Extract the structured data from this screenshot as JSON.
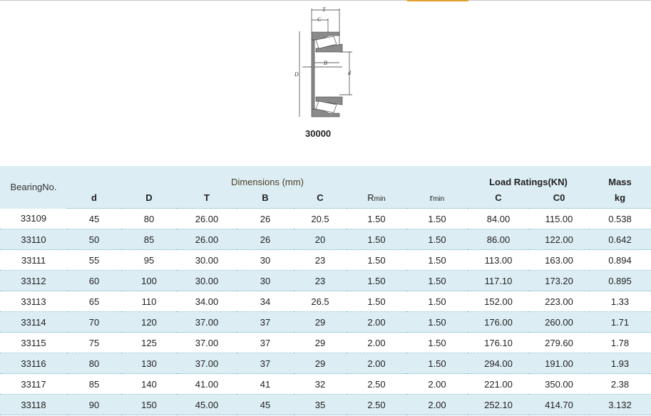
{
  "figure": {
    "caption": "30000",
    "labels": {
      "T": "T",
      "C": "C",
      "B": "B",
      "D": "D",
      "d": "d"
    }
  },
  "table": {
    "header": {
      "bearing_no": "BearingNo.",
      "dimensions": "Dimensions (mm)",
      "load_ratings": "Load Ratings(KN)",
      "mass": "Mass"
    },
    "subheader": {
      "d": "d",
      "D": "D",
      "T": "T",
      "B": "B",
      "C": "C",
      "Rmin_main": "R",
      "Rmin_sub": "min",
      "rmin_main": "r",
      "rmin_sub": "min",
      "Cr": "C",
      "C0": "C0",
      "kg": "kg"
    },
    "rows": [
      [
        "33109",
        "45",
        "80",
        "26.00",
        "26",
        "20.5",
        "1.50",
        "1.50",
        "84.00",
        "115.00",
        "0.538"
      ],
      [
        "33110",
        "50",
        "85",
        "26.00",
        "26",
        "20",
        "1.50",
        "1.50",
        "86.00",
        "122.00",
        "0.642"
      ],
      [
        "33111",
        "55",
        "95",
        "30.00",
        "30",
        "23",
        "1.50",
        "1.50",
        "113.00",
        "163.00",
        "0.894"
      ],
      [
        "33112",
        "60",
        "100",
        "30.00",
        "30",
        "23",
        "1.50",
        "1.50",
        "117.10",
        "173.20",
        "0.895"
      ],
      [
        "33113",
        "65",
        "110",
        "34.00",
        "34",
        "26.5",
        "1.50",
        "1.50",
        "152.00",
        "223.00",
        "1.33"
      ],
      [
        "33114",
        "70",
        "120",
        "37.00",
        "37",
        "29",
        "2.00",
        "1.50",
        "176.00",
        "260.00",
        "1.71"
      ],
      [
        "33115",
        "75",
        "125",
        "37.00",
        "37",
        "29",
        "2.00",
        "1.50",
        "176.10",
        "279.60",
        "1.78"
      ],
      [
        "33116",
        "80",
        "130",
        "37.00",
        "37",
        "29",
        "2.00",
        "1.50",
        "294.00",
        "191.00",
        "1.93"
      ],
      [
        "33117",
        "85",
        "140",
        "41.00",
        "41",
        "32",
        "2.50",
        "2.00",
        "221.00",
        "350.00",
        "2.38"
      ],
      [
        "33118",
        "90",
        "150",
        "45.00",
        "45",
        "35",
        "2.50",
        "2.00",
        "252.10",
        "414.70",
        "3.132"
      ]
    ]
  }
}
